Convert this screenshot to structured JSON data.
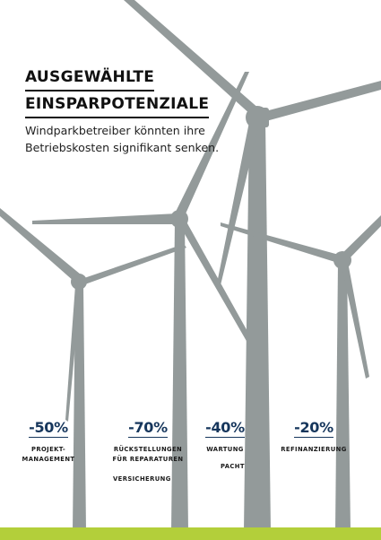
{
  "header": {
    "title_line1": "AUSGEWÄHLTE",
    "title_line2": "EINSPARPOTENZIALE",
    "subtitle_line1": "Windparkbetreiber könnten ihre",
    "subtitle_line2": "Betriebskosten signifikant senken."
  },
  "stats": [
    {
      "percent": "-50%",
      "label_line1": "PROJEKT-",
      "label_line2": "MANAGEMENT"
    },
    {
      "percent": "-70%",
      "label_line1": "RÜCKSTELLUNGEN",
      "label_line2": "FÜR REPARATUREN",
      "extra": "VERSICHERUNG"
    },
    {
      "percent": "-40%",
      "label_line1": "WARTUNG",
      "extra": "PACHT"
    },
    {
      "percent": "-20%",
      "label_line1": "REFINANZIERUNG"
    }
  ],
  "colors": {
    "turbine": "#939a9a",
    "percent": "#16365c",
    "ground": "#b3cf3a"
  }
}
